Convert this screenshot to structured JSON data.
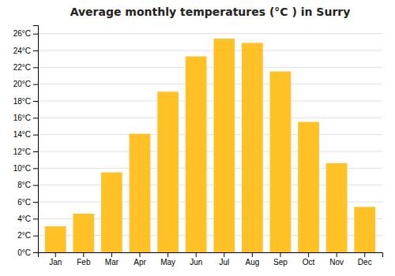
{
  "chart_data": {
    "type": "bar",
    "title": "Average monthly temperatures (°C ) in Surry",
    "categories": [
      "Jan",
      "Feb",
      "Mar",
      "Apr",
      "May",
      "Jun",
      "Jul",
      "Aug",
      "Sep",
      "Oct",
      "Nov",
      "Dec"
    ],
    "values": [
      3.1,
      4.6,
      9.5,
      14.1,
      19.1,
      23.3,
      25.4,
      24.9,
      21.5,
      15.5,
      10.6,
      5.4
    ],
    "color": "#FFC125",
    "ylim": [
      0,
      27
    ],
    "yticks": [
      {
        "value": 0,
        "label": "0°C"
      },
      {
        "value": 2,
        "label": "2°C"
      },
      {
        "value": 4,
        "label": "4°C"
      },
      {
        "value": 6,
        "label": "6°C"
      },
      {
        "value": 8,
        "label": "8°C"
      },
      {
        "value": 10,
        "label": "10°C"
      },
      {
        "value": 12,
        "label": "12°C"
      },
      {
        "value": 14,
        "label": "14°C"
      },
      {
        "value": 16,
        "label": "16°C"
      },
      {
        "value": 18,
        "label": "18°C"
      },
      {
        "value": 20,
        "label": "20°C"
      },
      {
        "value": 22,
        "label": "22°C"
      },
      {
        "value": 24,
        "label": "24°C"
      },
      {
        "value": 26,
        "label": "26°C"
      }
    ],
    "grid": true
  }
}
